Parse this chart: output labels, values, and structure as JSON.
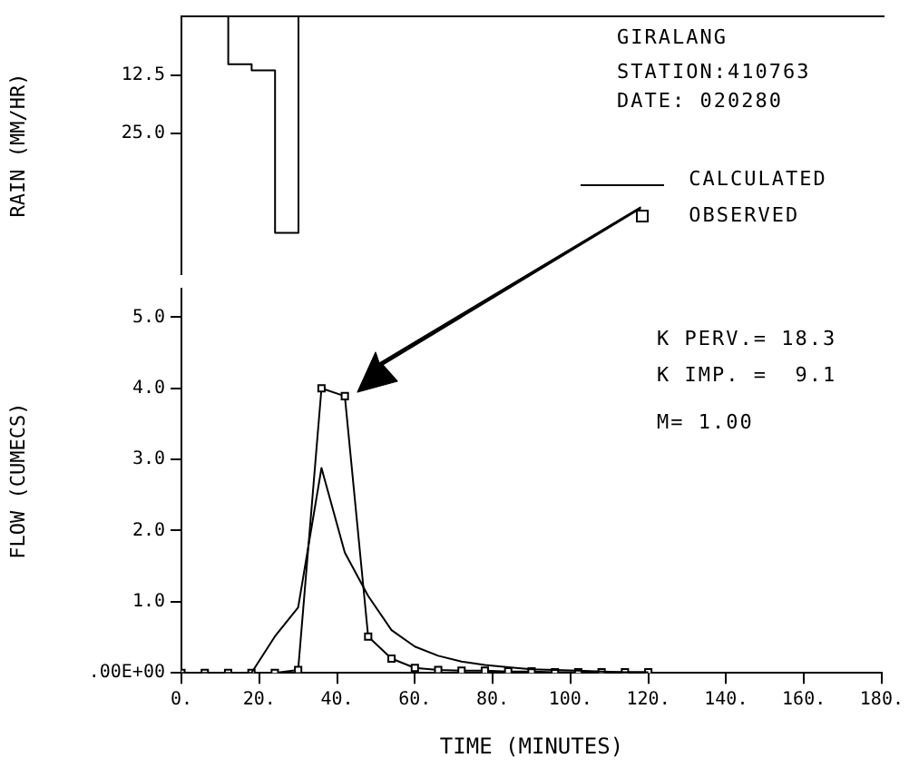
{
  "chart_data": [
    {
      "type": "step",
      "ylabel": "RAIN (MM/HR)",
      "x": [
        0,
        6,
        12,
        18,
        24,
        30,
        36
      ],
      "values": [
        0,
        0,
        0,
        10.2,
        11.5,
        46.2,
        0
      ],
      "color": "#000000",
      "xlim": [
        0,
        180
      ],
      "ylim": [
        55,
        0
      ],
      "yticks": [
        {
          "value": 12.5,
          "label": "12.5"
        },
        {
          "value": 25,
          "label": "25.0"
        }
      ],
      "tick_labels": "y",
      "grid": false,
      "annotations": [
        "GIRALANG",
        "STATION:410763",
        "DATE: 020280"
      ]
    },
    {
      "type": "line",
      "xlabel": "TIME (MINUTES)",
      "ylabel": "FLOW (CUMECS)",
      "xlim": [
        0,
        180
      ],
      "xticks": [
        {
          "value": 0,
          "label": "0."
        },
        {
          "value": 20,
          "label": "20."
        },
        {
          "value": 40,
          "label": "40."
        },
        {
          "value": 60,
          "label": "60."
        },
        {
          "value": 80,
          "label": "80."
        },
        {
          "value": 100,
          "label": "100."
        },
        {
          "value": 120,
          "label": "120."
        },
        {
          "value": 140,
          "label": "140."
        },
        {
          "value": 160,
          "label": "160."
        },
        {
          "value": 180,
          "label": "180."
        }
      ],
      "ylim": [
        0,
        5.4
      ],
      "yticks": [
        {
          "value": 0,
          "label": ".00E+00"
        },
        {
          "value": 1,
          "label": "1.0"
        },
        {
          "value": 2,
          "label": "2.0"
        },
        {
          "value": 3,
          "label": "3.0"
        },
        {
          "value": 4,
          "label": "4.0"
        },
        {
          "value": 5,
          "label": "5.0"
        }
      ],
      "grid": false,
      "legend": "top right",
      "series": [
        {
          "name": "CALCULATED",
          "color": "#000000",
          "marker": "none",
          "x": [
            0,
            6,
            12,
            18,
            24,
            30,
            36,
            42,
            48,
            54,
            60,
            66,
            72,
            78,
            84,
            90,
            96,
            102,
            108,
            114,
            120
          ],
          "values": [
            0,
            0,
            0,
            0,
            0.51,
            0.92,
            2.88,
            1.69,
            1.08,
            0.6,
            0.37,
            0.24,
            0.16,
            0.11,
            0.08,
            0.05,
            0.04,
            0.03,
            0.02,
            0.01,
            0.01
          ]
        },
        {
          "name": "OBSERVED",
          "color": "#000000",
          "marker": "square",
          "x": [
            0,
            6,
            12,
            18,
            24,
            30,
            36,
            42,
            48,
            54,
            60,
            66,
            72,
            78,
            84,
            90,
            96,
            102,
            108,
            114,
            120
          ],
          "values": [
            0,
            0,
            0,
            0,
            0,
            0.04,
            4.0,
            3.89,
            0.51,
            0.2,
            0.07,
            0.04,
            0.03,
            0.03,
            0.02,
            0.02,
            0.01,
            0.01,
            0.01,
            0.01,
            0.01
          ]
        }
      ],
      "annotations": [
        "K PERV.= 18.3",
        "K IMP. =  9.1",
        "M= 1.00"
      ]
    }
  ]
}
